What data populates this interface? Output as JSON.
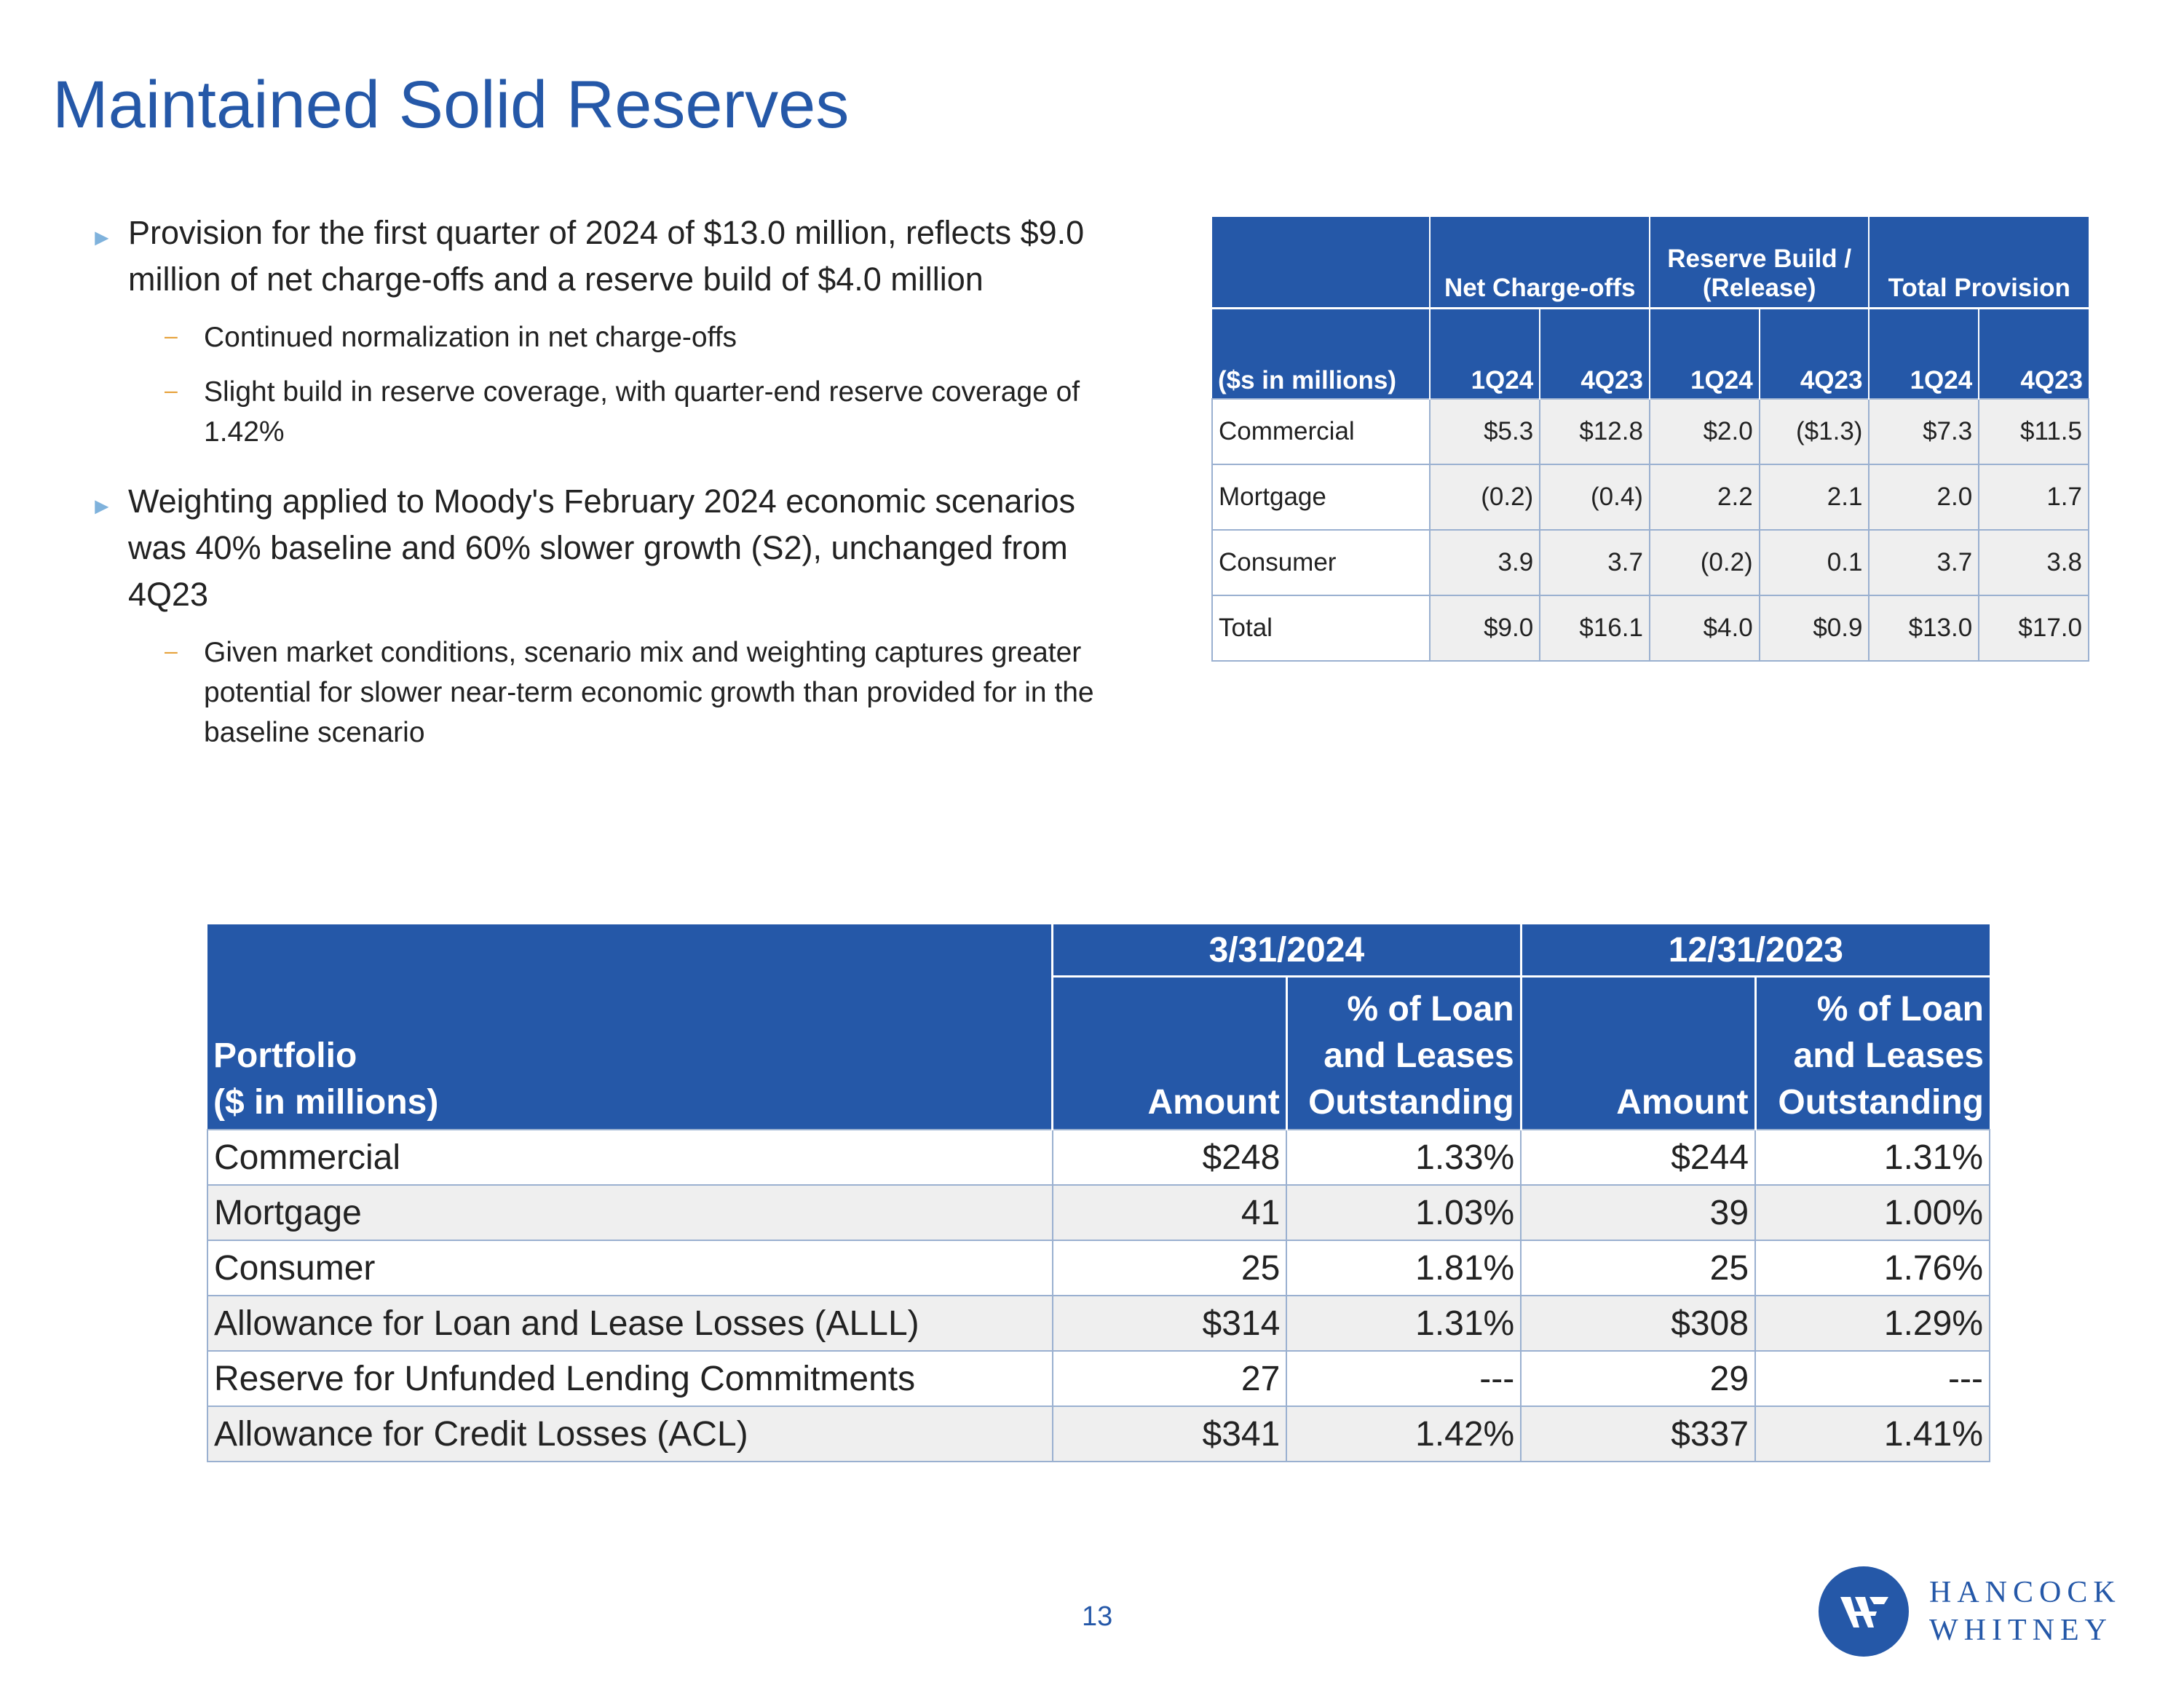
{
  "page": {
    "title": "Maintained Solid Reserves",
    "page_number": "13"
  },
  "bullets": [
    {
      "text": "Provision for the first quarter of 2024 of $13.0 million, reflects $9.0 million of net charge-offs and a reserve build of $4.0 million",
      "subs": [
        "Continued normalization in net charge-offs",
        "Slight build in reserve coverage, with quarter-end reserve coverage of 1.42%"
      ]
    },
    {
      "text": "Weighting applied to Moody's February 2024 economic scenarios was 40% baseline and 60% slower growth (S2), unchanged from 4Q23",
      "subs": [
        "Given market conditions, scenario mix and weighting captures greater potential for slower near-term economic growth than provided for in the baseline scenario"
      ]
    }
  ],
  "provision_table": {
    "corner_label": "($s in millions)",
    "groups": [
      "Net Charge-offs",
      "Reserve Build / (Release)",
      "Total Provision"
    ],
    "periods": [
      "1Q24",
      "4Q23",
      "1Q24",
      "4Q23",
      "1Q24",
      "4Q23"
    ],
    "rows": [
      {
        "label": "Commercial",
        "values": [
          "$5.3",
          "$12.8",
          "$2.0",
          "($1.3)",
          "$7.3",
          "$11.5"
        ]
      },
      {
        "label": "Mortgage",
        "values": [
          "(0.2)",
          "(0.4)",
          "2.2",
          "2.1",
          "2.0",
          "1.7"
        ]
      },
      {
        "label": "Consumer",
        "values": [
          "3.9",
          "3.7",
          "(0.2)",
          "0.1",
          "3.7",
          "3.8"
        ]
      },
      {
        "label": "Total",
        "values": [
          "$9.0",
          "$16.1",
          "$4.0",
          "$0.9",
          "$13.0",
          "$17.0"
        ]
      }
    ]
  },
  "portfolio_table": {
    "corner_label_1": "Portfolio",
    "corner_label_2": "($ in millions)",
    "dates": [
      "3/31/2024",
      "12/31/2023"
    ],
    "col_amount": "Amount",
    "col_pct_1": "% of Loan",
    "col_pct_2": "and Leases",
    "col_pct_3": "Outstanding",
    "rows": [
      {
        "label": "Commercial",
        "values": [
          "$248",
          "1.33%",
          "$244",
          "1.31%"
        ]
      },
      {
        "label": "Mortgage",
        "values": [
          "41",
          "1.03%",
          "39",
          "1.00%"
        ]
      },
      {
        "label": "Consumer",
        "values": [
          "25",
          "1.81%",
          "25",
          "1.76%"
        ]
      },
      {
        "label": "Allowance for Loan and Lease Losses (ALLL)",
        "values": [
          "$314",
          "1.31%",
          "$308",
          "1.29%"
        ]
      },
      {
        "label": "Reserve for Unfunded Lending Commitments",
        "values": [
          "27",
          "---",
          "29",
          "---"
        ]
      },
      {
        "label": "Allowance for Credit Losses (ACL)",
        "values": [
          "$341",
          "1.42%",
          "$337",
          "1.41%"
        ]
      }
    ]
  },
  "logo": {
    "line1": "HANCOCK",
    "line2": "WHITNEY",
    "brand_color": "#2558a8"
  }
}
